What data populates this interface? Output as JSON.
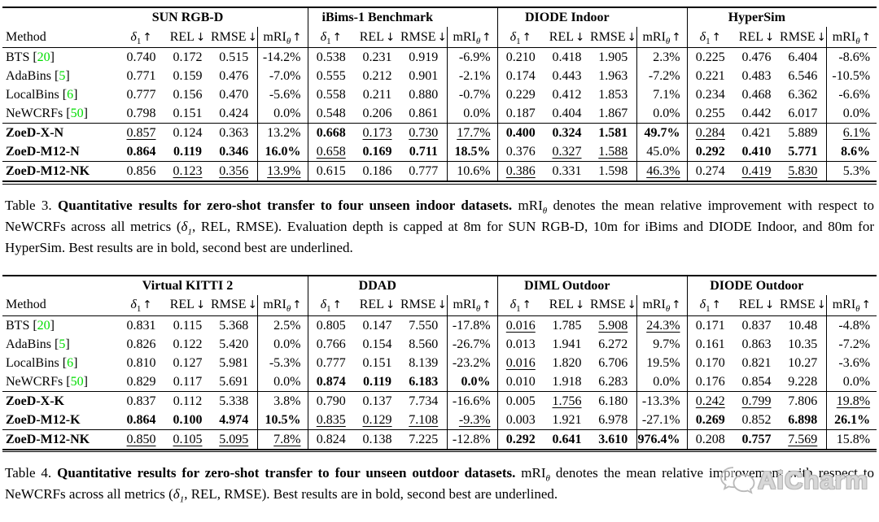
{
  "colors": {
    "cite_green": "#00dd00",
    "watermark_gray": "#b9b9b9"
  },
  "header_labels": {
    "method": "Method"
  },
  "metrics": [
    {
      "base": "δ",
      "italic": true,
      "sub": "1",
      "arrow": "↑"
    },
    {
      "base": "REL",
      "italic": false,
      "sub": "",
      "arrow": "↓"
    },
    {
      "base": "RMSE",
      "italic": false,
      "sub": "",
      "arrow": "↓"
    },
    {
      "base": "mRI",
      "italic": false,
      "sub": "θ",
      "subItalic": true,
      "arrow": "↑"
    }
  ],
  "watermark": {
    "icon": "wechat-chat-bubbles-icon",
    "text": "AiCharm"
  },
  "tables": [
    {
      "name": "indoor-results-table",
      "groups": [
        "SUN RGB-D",
        "iBims-1 Benchmark",
        "DIODE Indoor",
        "HyperSim"
      ],
      "sections": [
        {
          "rows": [
            {
              "method": "BTS",
              "ref": "20",
              "bold": false,
              "cells": [
                "0.740",
                "0.172",
                "0.515",
                "-14.2%",
                "0.538",
                "0.231",
                "0.919",
                "-6.9%",
                "0.210",
                "0.418",
                "1.905",
                "2.3%",
                "0.225",
                "0.476",
                "6.404",
                "-8.6%"
              ]
            },
            {
              "method": "AdaBins",
              "ref": "5",
              "bold": false,
              "cells": [
                "0.771",
                "0.159",
                "0.476",
                "-7.0%",
                "0.555",
                "0.212",
                "0.901",
                "-2.1%",
                "0.174",
                "0.443",
                "1.963",
                "-7.2%",
                "0.221",
                "0.483",
                "6.546",
                "-10.5%"
              ]
            },
            {
              "method": "LocalBins",
              "ref": "6",
              "bold": false,
              "cells": [
                "0.777",
                "0.156",
                "0.470",
                "-5.6%",
                "0.558",
                "0.211",
                "0.880",
                "-0.7%",
                "0.229",
                "0.412",
                "1.853",
                "7.1%",
                "0.234",
                "0.468",
                "6.362",
                "-6.6%"
              ]
            },
            {
              "method": "NeWCRFs",
              "ref": "50",
              "bold": false,
              "cells": [
                "0.798",
                "0.151",
                "0.424",
                "0.0%",
                "0.548",
                "0.206",
                "0.861",
                "0.0%",
                "0.187",
                "0.404",
                "1.867",
                "0.0%",
                "0.255",
                "0.442",
                "6.017",
                "0.0%"
              ]
            }
          ]
        },
        {
          "rows": [
            {
              "method": "ZoeD-X-N",
              "ref": "",
              "bold": true,
              "cells": [
                "0.857|u",
                "0.124",
                "0.363",
                "13.2%",
                "0.668|b",
                "0.173|u",
                "0.730|u",
                "17.7%|u",
                "0.400|b",
                "0.324|b",
                "1.581|b",
                "49.7%|b",
                "0.284|u",
                "0.421",
                "5.889",
                "6.1%|u"
              ]
            },
            {
              "method": "ZoeD-M12-N",
              "ref": "",
              "bold": true,
              "cells": [
                "0.864|b",
                "0.119|b",
                "0.346|b",
                "16.0%|b",
                "0.658|u",
                "0.169|b",
                "0.711|b",
                "18.5%|b",
                "0.376",
                "0.327|u",
                "1.588|u",
                "45.0%",
                "0.292|b",
                "0.410|b",
                "5.771|b",
                "8.6%|b"
              ]
            }
          ]
        },
        {
          "rows": [
            {
              "method": "ZoeD-M12-NK",
              "ref": "",
              "bold": true,
              "cells": [
                "0.856",
                "0.123|u",
                "0.356|u",
                "13.9%|u",
                "0.615",
                "0.186",
                "0.777",
                "10.6%",
                "0.386|u",
                "0.331",
                "1.598",
                "46.3%|u",
                "0.274",
                "0.419|u",
                "5.830|u",
                "5.3%"
              ]
            }
          ]
        }
      ],
      "caption": {
        "label": "Table 3.",
        "bold": "Quantitative results for zero-shot transfer to four unseen indoor datasets.",
        "rest": [
          {
            "t": " mRI",
            "style": ""
          },
          {
            "t": "θ",
            "style": "sub"
          },
          {
            "t": " denotes the mean relative improvement with respect to NeWCRFs across all metrics (",
            "style": ""
          },
          {
            "t": "δ",
            "style": "italic"
          },
          {
            "t": "1",
            "style": "sub"
          },
          {
            "t": ", REL, RMSE). Evaluation depth is capped at 8m for SUN RGB-D, 10m for iBims and DIODE Indoor, and 80m for HyperSim. Best results are in bold, second best are underlined.",
            "style": ""
          }
        ]
      }
    },
    {
      "name": "outdoor-results-table",
      "groups": [
        "Virtual KITTI 2",
        "DDAD",
        "DIML Outdoor",
        "DIODE Outdoor"
      ],
      "sections": [
        {
          "rows": [
            {
              "method": "BTS",
              "ref": "20",
              "bold": false,
              "cells": [
                "0.831",
                "0.115",
                "5.368",
                "2.5%",
                "0.805",
                "0.147",
                "7.550",
                "-17.8%",
                "0.016|u",
                "1.785",
                "5.908|u",
                "24.3%|u",
                "0.171",
                "0.837",
                "10.48",
                "-4.8%"
              ]
            },
            {
              "method": "AdaBins",
              "ref": "5",
              "bold": false,
              "cells": [
                "0.826",
                "0.122",
                "5.420",
                "0.0%",
                "0.766",
                "0.154",
                "8.560",
                "-26.7%",
                "0.013",
                "1.941",
                "6.272",
                "9.7%",
                "0.161",
                "0.863",
                "10.35",
                "-7.2%"
              ]
            },
            {
              "method": "LocalBins",
              "ref": "6",
              "bold": false,
              "cells": [
                "0.810",
                "0.127",
                "5.981",
                "-5.3%",
                "0.777",
                "0.151",
                "8.139",
                "-23.2%",
                "0.016|u",
                "1.820",
                "6.706",
                "19.5%",
                "0.170",
                "0.821",
                "10.27",
                "-3.6%"
              ]
            },
            {
              "method": "NeWCRFs",
              "ref": "50",
              "bold": false,
              "cells": [
                "0.829",
                "0.117",
                "5.691",
                "0.0%",
                "0.874|b",
                "0.119|b",
                "6.183|b",
                "0.0%|b",
                "0.010",
                "1.918",
                "6.283",
                "0.0%",
                "0.176",
                "0.854",
                "9.228",
                "0.0%"
              ]
            }
          ]
        },
        {
          "rows": [
            {
              "method": "ZoeD-X-K",
              "ref": "",
              "bold": true,
              "cells": [
                "0.837",
                "0.112",
                "5.338",
                "3.8%",
                "0.790",
                "0.137",
                "7.734",
                "-16.6%",
                "0.005",
                "1.756|u",
                "6.180",
                "-13.3%",
                "0.242|u",
                "0.799|u",
                "7.806",
                "19.8%|u"
              ]
            },
            {
              "method": "ZoeD-M12-K",
              "ref": "",
              "bold": true,
              "cells": [
                "0.864|b",
                "0.100|b",
                "4.974|b",
                "10.5%|b",
                "0.835|u",
                "0.129|u",
                "7.108|u",
                "-9.3%|u",
                "0.003",
                "1.921",
                "6.978",
                "-27.1%",
                "0.269|b",
                "0.852",
                "6.898|b",
                "26.1%|b"
              ]
            }
          ]
        },
        {
          "rows": [
            {
              "method": "ZoeD-M12-NK",
              "ref": "",
              "bold": true,
              "cells": [
                "0.850|u",
                "0.105|u",
                "5.095|u",
                "7.8%|u",
                "0.824",
                "0.138",
                "7.225",
                "-12.8%",
                "0.292|b",
                "0.641|b",
                "3.610|b",
                "976.4%|b",
                "0.208",
                "0.757|b",
                "7.569|u",
                "15.8%"
              ]
            }
          ]
        }
      ],
      "caption": {
        "label": "Table 4.",
        "bold": "Quantitative results for zero-shot transfer to four unseen outdoor datasets.",
        "rest": [
          {
            "t": " mRI",
            "style": ""
          },
          {
            "t": "θ",
            "style": "sub"
          },
          {
            "t": " denotes the mean relative improvement with respect to NeWCRFs across all metrics (",
            "style": ""
          },
          {
            "t": "δ",
            "style": "italic"
          },
          {
            "t": "1",
            "style": "sub"
          },
          {
            "t": ", REL, RMSE). Best results are in bold, second best are underlined.",
            "style": ""
          }
        ]
      }
    }
  ]
}
